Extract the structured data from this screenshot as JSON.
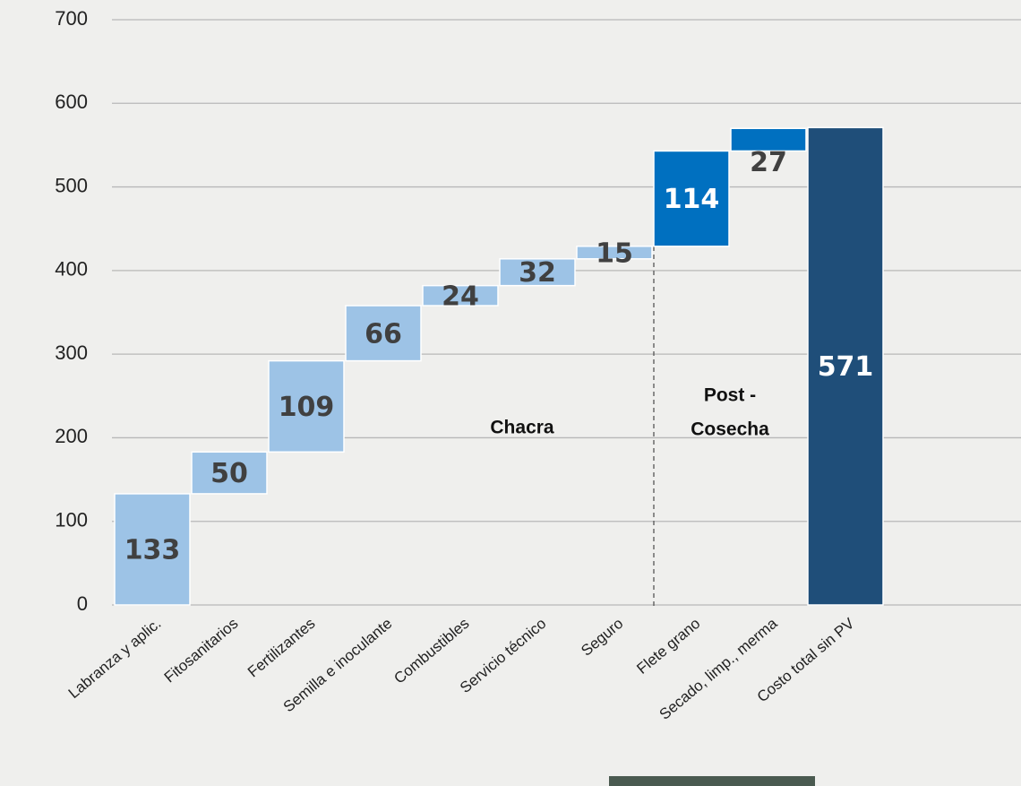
{
  "chart_data": {
    "type": "waterfall",
    "categories": [
      "Labranza y aplic.",
      "Fitosanitarios",
      "Fertilizantes",
      "Semilla e inoculante",
      "Combustibles",
      "Servicio técnico",
      "Seguro",
      "Flete grano",
      "Secado, limp., merma",
      "Costo total sin PV"
    ],
    "values": [
      133,
      50,
      109,
      66,
      24,
      32,
      15,
      114,
      27,
      571
    ],
    "colors": [
      "#9dc3e6",
      "#9dc3e6",
      "#9dc3e6",
      "#9dc3e6",
      "#9dc3e6",
      "#9dc3e6",
      "#9dc3e6",
      "#0070c0",
      "#0070c0",
      "#1f4e79"
    ],
    "ylim": [
      0,
      700
    ],
    "yticks": [
      0,
      100,
      200,
      300,
      400,
      500,
      600,
      700
    ],
    "grid": true,
    "annotations": [
      {
        "lines": [
          "Chacra"
        ]
      },
      {
        "lines": [
          "Post -",
          "Cosecha"
        ]
      }
    ]
  }
}
